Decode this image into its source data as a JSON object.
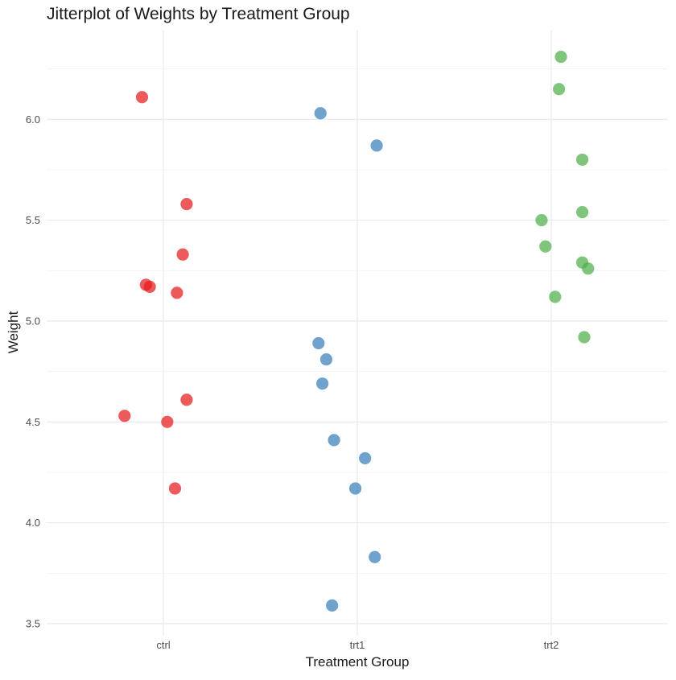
{
  "chart_data": {
    "type": "scatter",
    "title": "Jitterplot of Weights by Treatment Group",
    "xlabel": "Treatment Group",
    "ylabel": "Weight",
    "categories": [
      "ctrl",
      "trt1",
      "trt2"
    ],
    "ylim": [
      3.44,
      6.44
    ],
    "y_ticks": [
      "3.5",
      "4.0",
      "4.5",
      "5.0",
      "5.5",
      "6.0"
    ],
    "grid": true,
    "legend": "none",
    "series": [
      {
        "category": "ctrl",
        "color": "#E41A1C",
        "points": [
          {
            "x": -0.11,
            "y": 6.11
          },
          {
            "x": 0.12,
            "y": 5.58
          },
          {
            "x": 0.1,
            "y": 5.33
          },
          {
            "x": -0.09,
            "y": 5.18
          },
          {
            "x": -0.07,
            "y": 5.17
          },
          {
            "x": 0.07,
            "y": 5.14
          },
          {
            "x": 0.12,
            "y": 4.61
          },
          {
            "x": -0.2,
            "y": 4.53
          },
          {
            "x": 0.02,
            "y": 4.5
          },
          {
            "x": 0.06,
            "y": 4.17
          }
        ]
      },
      {
        "category": "trt1",
        "color": "#377EB8",
        "points": [
          {
            "x": -0.19,
            "y": 6.03
          },
          {
            "x": 0.1,
            "y": 5.87
          },
          {
            "x": -0.2,
            "y": 4.89
          },
          {
            "x": -0.16,
            "y": 4.81
          },
          {
            "x": -0.18,
            "y": 4.69
          },
          {
            "x": -0.12,
            "y": 4.41
          },
          {
            "x": 0.04,
            "y": 4.32
          },
          {
            "x": -0.01,
            "y": 4.17
          },
          {
            "x": 0.09,
            "y": 3.83
          },
          {
            "x": -0.13,
            "y": 3.59
          }
        ]
      },
      {
        "category": "trt2",
        "color": "#4DAF4A",
        "points": [
          {
            "x": 0.05,
            "y": 6.31
          },
          {
            "x": 0.04,
            "y": 6.15
          },
          {
            "x": 0.16,
            "y": 5.8
          },
          {
            "x": 0.16,
            "y": 5.54
          },
          {
            "x": -0.05,
            "y": 5.5
          },
          {
            "x": -0.03,
            "y": 5.37
          },
          {
            "x": 0.16,
            "y": 5.29
          },
          {
            "x": 0.19,
            "y": 5.26
          },
          {
            "x": 0.02,
            "y": 5.12
          },
          {
            "x": 0.17,
            "y": 4.92
          }
        ]
      }
    ]
  }
}
